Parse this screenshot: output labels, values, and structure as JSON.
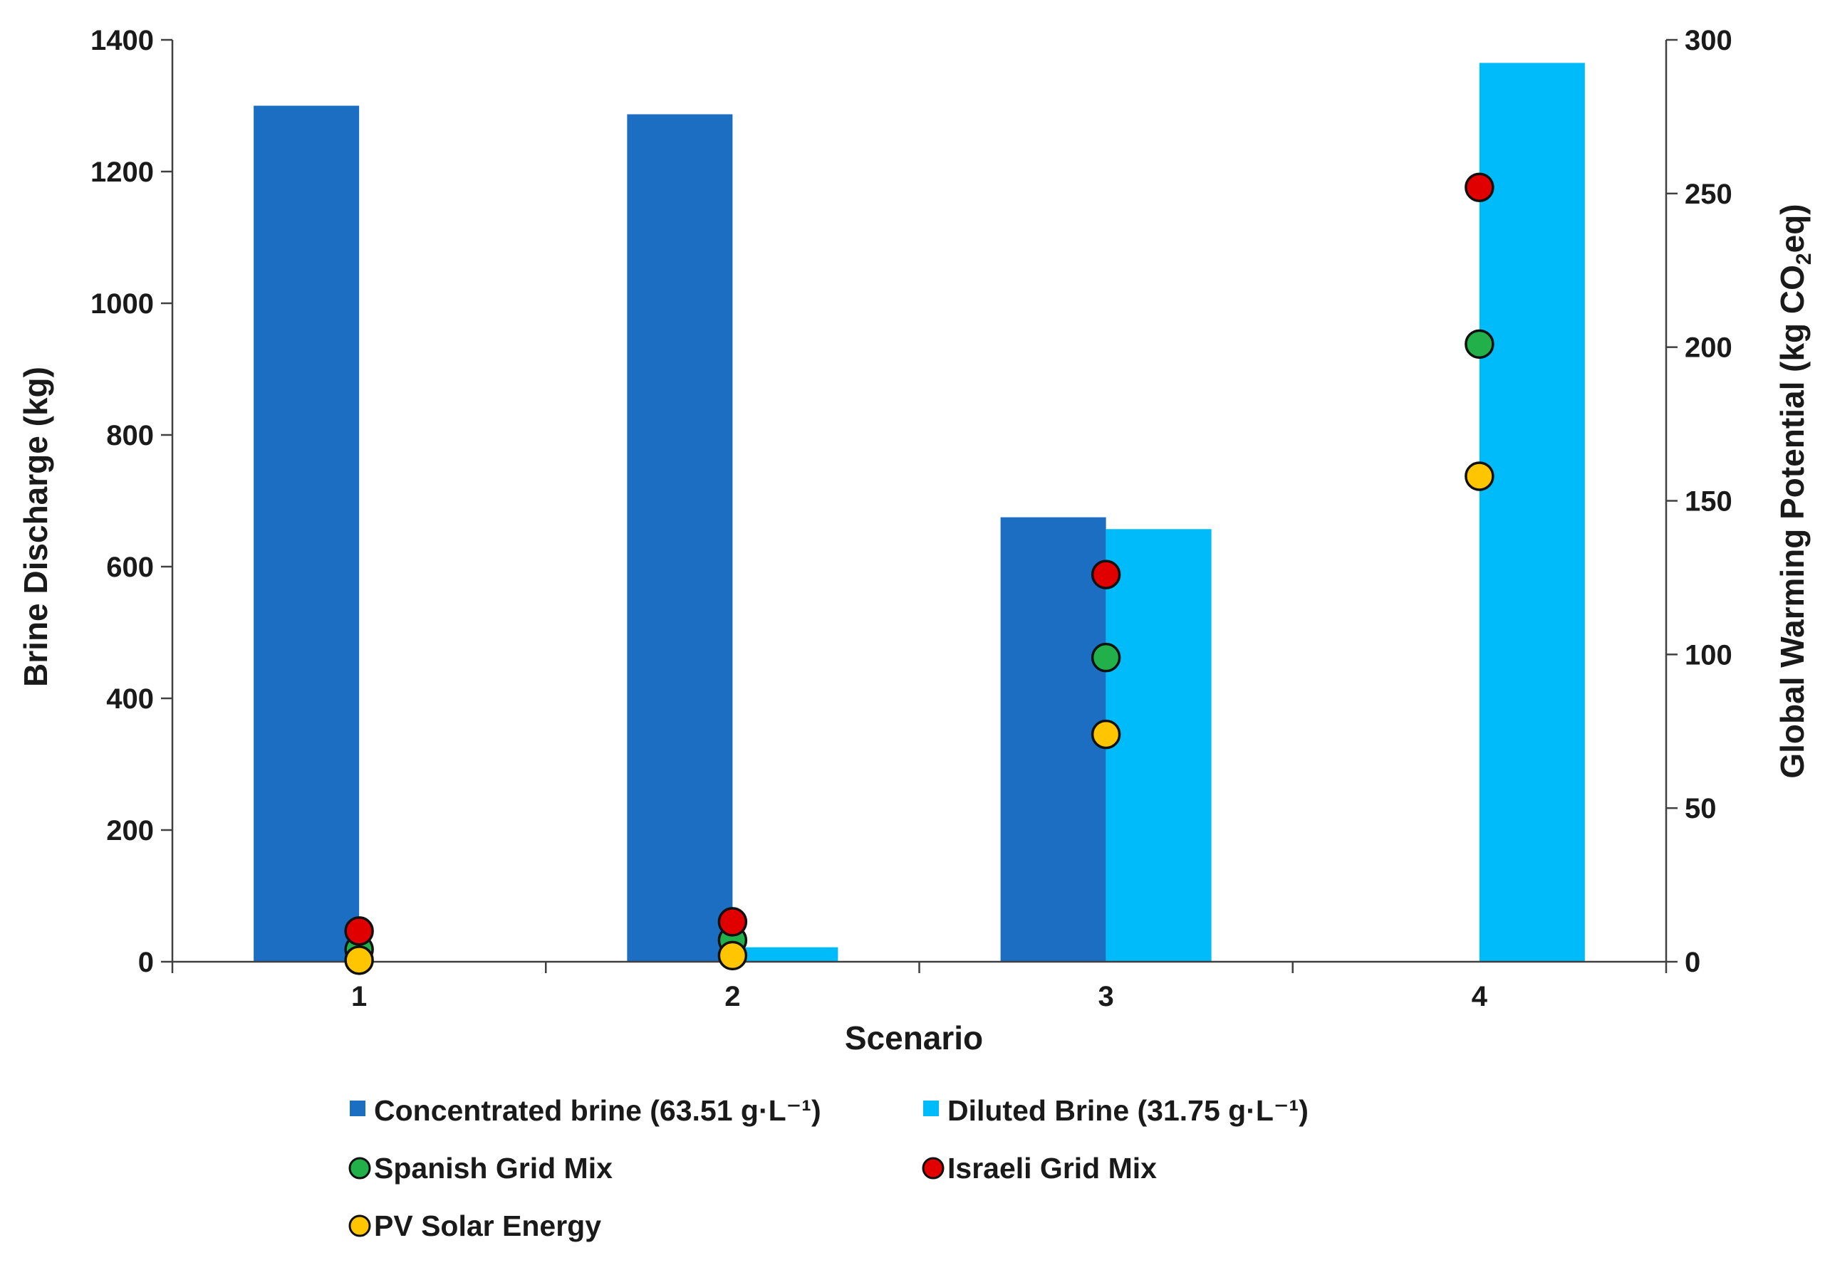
{
  "chart_data": {
    "type": "bar",
    "title": "",
    "xlabel": "Scenario",
    "ylabel": "Brine Discharge (kg)",
    "y2label": {
      "prefix": "Global Warming Potential (kg CO",
      "sub": "2",
      "suffix": "eq)"
    },
    "categories": [
      "1",
      "2",
      "3",
      "4"
    ],
    "ylim": [
      0,
      1400
    ],
    "yticks": [
      0,
      200,
      400,
      600,
      800,
      1000,
      1200,
      1400
    ],
    "y2lim": [
      0,
      300
    ],
    "y2ticks": [
      0,
      50,
      100,
      150,
      200,
      250,
      300
    ],
    "series": [
      {
        "name": "Concentrated brine (63.51 g·L⁻¹)",
        "kind": "bar",
        "axis": "left",
        "color": "#1B6EC2",
        "values": [
          1300,
          1287,
          675,
          0
        ]
      },
      {
        "name": "Diluted Brine (31.75 g·L⁻¹)",
        "kind": "bar",
        "axis": "left",
        "color": "#00BBF9",
        "values": [
          0,
          22,
          657,
          1365
        ]
      },
      {
        "name": "Spanish Grid Mix",
        "kind": "scatter",
        "axis": "right",
        "color": "#22B04B",
        "values": [
          4,
          7,
          99,
          201
        ]
      },
      {
        "name": "Israeli Grid Mix",
        "kind": "scatter",
        "axis": "right",
        "color": "#E00000",
        "values": [
          10,
          13,
          126,
          252
        ]
      },
      {
        "name": "PV Solar Energy",
        "kind": "scatter",
        "axis": "right",
        "color": "#FFC600",
        "values": [
          0.5,
          2,
          74,
          158
        ]
      }
    ],
    "legend_position": "bottom"
  }
}
